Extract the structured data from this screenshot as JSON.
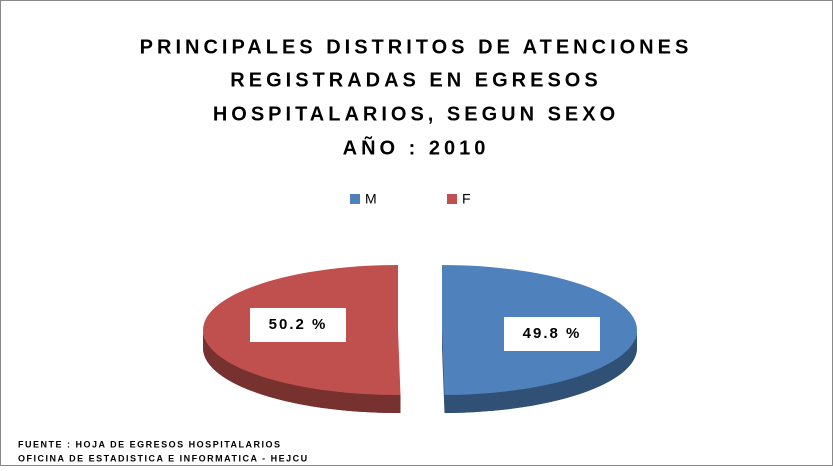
{
  "chart_data": {
    "type": "pie",
    "title": [
      "PRINCIPALES DISTRITOS DE ATENCIONES",
      "REGISTRADAS EN EGRESOS",
      "HOSPITALARIOS, SEGUN SEXO",
      "AÑO : 2010"
    ],
    "categories": [
      "M",
      "F"
    ],
    "values": [
      49.8,
      50.2
    ],
    "value_labels": [
      "49.8 %",
      "50.2 %"
    ],
    "colors": [
      "#4f81bd",
      "#c0504d"
    ],
    "legend": "top",
    "source": [
      "FUENTE : HOJA DE EGRESOS HOSPITALARIOS",
      "OFICINA DE ESTADISTICA E INFORMATICA - HEJCU"
    ]
  }
}
